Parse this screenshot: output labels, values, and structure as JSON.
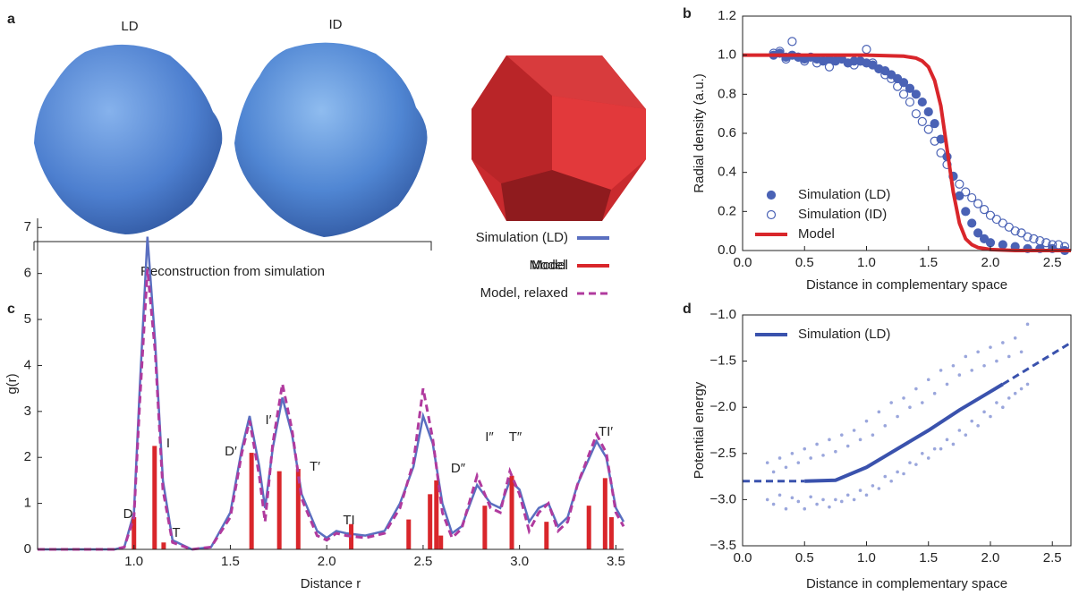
{
  "panel_labels": [
    "a",
    "b",
    "c",
    "d"
  ],
  "panel_a": {
    "labels": [
      "LD",
      "ID"
    ],
    "bracket_label": "Reconstruction from simulation",
    "model_label": "Model"
  },
  "chart_data": [
    {
      "type": "scatter",
      "xlabel": "Distance in complementary space",
      "ylabel": "Radial density (a.u.)",
      "xlim": [
        0,
        2.65
      ],
      "ylim": [
        0,
        1.2
      ],
      "xticks": [
        {
          "value": 0,
          "label": "0.0"
        },
        0.5,
        {
          "value": 1,
          "label": "1.0"
        },
        1.5,
        {
          "value": 2,
          "label": "2.0"
        },
        2.5
      ],
      "yticks": [
        {
          "value": 0,
          "label": "0.0"
        },
        0.2,
        0.4,
        0.6,
        0.8,
        {
          "value": 1,
          "label": "1.0"
        },
        1.2
      ],
      "legend": "lower left",
      "series": [
        {
          "name": "Simulation (LD)",
          "kind": "marker",
          "color": "#4a62b5",
          "x": [
            0.25,
            0.3,
            0.35,
            0.4,
            0.45,
            0.5,
            0.55,
            0.6,
            0.65,
            0.7,
            0.75,
            0.8,
            0.85,
            0.9,
            0.95,
            1.0,
            1.05,
            1.1,
            1.15,
            1.2,
            1.25,
            1.3,
            1.35,
            1.4,
            1.45,
            1.5,
            1.55,
            1.6,
            1.65,
            1.7,
            1.75,
            1.8,
            1.85,
            1.9,
            1.95,
            2.0,
            2.1,
            2.2,
            2.3,
            2.4,
            2.5,
            2.6
          ],
          "values": [
            1.0,
            1.01,
            0.99,
            1.0,
            0.99,
            0.98,
            0.99,
            0.98,
            0.97,
            0.98,
            0.97,
            0.98,
            0.96,
            0.97,
            0.97,
            0.96,
            0.95,
            0.93,
            0.92,
            0.9,
            0.88,
            0.86,
            0.83,
            0.8,
            0.76,
            0.71,
            0.65,
            0.57,
            0.48,
            0.38,
            0.28,
            0.2,
            0.14,
            0.09,
            0.06,
            0.04,
            0.03,
            0.02,
            0.01,
            0.01,
            0.01,
            0.0
          ]
        },
        {
          "name": "Simulation (ID)",
          "kind": "marker",
          "open": true,
          "color": "#4a62b5",
          "x": [
            0.25,
            0.3,
            0.35,
            0.4,
            0.45,
            0.5,
            0.6,
            0.7,
            0.8,
            0.9,
            0.95,
            1.0,
            1.05,
            1.1,
            1.15,
            1.2,
            1.25,
            1.3,
            1.35,
            1.4,
            1.45,
            1.5,
            1.55,
            1.6,
            1.65,
            1.7,
            1.75,
            1.8,
            1.85,
            1.9,
            1.95,
            2.0,
            2.05,
            2.1,
            2.15,
            2.2,
            2.25,
            2.3,
            2.35,
            2.4,
            2.45,
            2.5,
            2.55,
            2.6
          ],
          "values": [
            1.01,
            1.02,
            0.98,
            1.07,
            0.99,
            0.97,
            0.96,
            0.94,
            0.98,
            0.95,
            0.97,
            1.03,
            0.96,
            0.93,
            0.9,
            0.88,
            0.84,
            0.8,
            0.76,
            0.7,
            0.66,
            0.62,
            0.56,
            0.5,
            0.44,
            0.38,
            0.34,
            0.3,
            0.27,
            0.24,
            0.21,
            0.18,
            0.16,
            0.14,
            0.12,
            0.1,
            0.09,
            0.07,
            0.06,
            0.05,
            0.04,
            0.03,
            0.03,
            0.02
          ]
        },
        {
          "name": "Model",
          "kind": "line",
          "color": "#d9262b",
          "x": [
            0,
            0.5,
            1.0,
            1.3,
            1.4,
            1.45,
            1.5,
            1.55,
            1.6,
            1.65,
            1.7,
            1.75,
            1.8,
            1.85,
            1.9,
            2.0,
            2.2,
            2.65
          ],
          "values": [
            1,
            1,
            1,
            0.995,
            0.985,
            0.97,
            0.94,
            0.87,
            0.74,
            0.52,
            0.3,
            0.14,
            0.06,
            0.03,
            0.015,
            0.005,
            0,
            0
          ]
        }
      ]
    },
    {
      "type": "line",
      "xlabel": "Distance r",
      "ylabel": "g(r)",
      "xlim": [
        0.5,
        3.54
      ],
      "ylim": [
        0,
        7.2
      ],
      "xticks": [
        {
          "value": 1,
          "label": "1.0"
        },
        1.5,
        {
          "value": 2,
          "label": "2.0"
        },
        2.5,
        {
          "value": 3,
          "label": "3.0"
        },
        3.5
      ],
      "yticks": [
        0,
        1,
        2,
        3,
        4,
        5,
        6,
        7
      ],
      "legend": "upper right",
      "annotations": [
        "D",
        "I",
        "T",
        "D′",
        "I′",
        "T′",
        "TI",
        "D″",
        "I″",
        "T″",
        "TI′"
      ],
      "series": [
        {
          "name": "Simulation (LD)",
          "kind": "line",
          "color": "#5a6fc0",
          "x": [
            0.5,
            0.9,
            0.95,
            1.0,
            1.03,
            1.07,
            1.11,
            1.15,
            1.2,
            1.3,
            1.4,
            1.5,
            1.56,
            1.6,
            1.65,
            1.68,
            1.72,
            1.77,
            1.82,
            1.87,
            1.95,
            2.0,
            2.05,
            2.1,
            2.2,
            2.3,
            2.38,
            2.45,
            2.5,
            2.55,
            2.6,
            2.65,
            2.7,
            2.78,
            2.85,
            2.9,
            2.95,
            3.0,
            3.05,
            3.1,
            3.15,
            3.2,
            3.25,
            3.3,
            3.4,
            3.45,
            3.5,
            3.54
          ],
          "values": [
            0,
            0,
            0.05,
            0.8,
            3.5,
            6.8,
            4.5,
            1.5,
            0.2,
            0,
            0.05,
            0.8,
            2.2,
            2.9,
            1.8,
            0.9,
            2.2,
            3.3,
            2.5,
            1.2,
            0.4,
            0.25,
            0.4,
            0.35,
            0.3,
            0.4,
            1.0,
            1.8,
            2.9,
            2.3,
            1.0,
            0.35,
            0.5,
            1.4,
            1.0,
            0.9,
            1.5,
            1.3,
            0.6,
            0.9,
            1.0,
            0.5,
            0.7,
            1.4,
            2.35,
            2.0,
            0.9,
            0.6
          ]
        },
        {
          "name": "Model",
          "kind": "bar",
          "color": "#d9262b",
          "x": [
            1.0,
            1.107,
            1.154,
            1.61,
            1.754,
            1.852,
            2.127,
            2.425,
            2.536,
            2.569,
            2.592,
            2.82,
            2.96,
            3.14,
            3.36,
            3.444,
            3.477
          ],
          "values": [
            0.7,
            2.25,
            0.15,
            2.1,
            1.7,
            1.75,
            0.55,
            0.65,
            1.2,
            1.5,
            0.3,
            0.95,
            1.6,
            0.6,
            0.95,
            1.55,
            0.7
          ]
        },
        {
          "name": "Model, relaxed",
          "kind": "line",
          "dash": true,
          "color": "#b03a9e",
          "x": [
            0.5,
            0.9,
            0.95,
            1.0,
            1.03,
            1.07,
            1.11,
            1.15,
            1.2,
            1.3,
            1.4,
            1.5,
            1.56,
            1.6,
            1.65,
            1.68,
            1.72,
            1.77,
            1.82,
            1.87,
            1.95,
            2.0,
            2.05,
            2.1,
            2.2,
            2.3,
            2.38,
            2.45,
            2.5,
            2.55,
            2.6,
            2.65,
            2.7,
            2.78,
            2.85,
            2.9,
            2.95,
            3.0,
            3.05,
            3.1,
            3.15,
            3.2,
            3.25,
            3.3,
            3.4,
            3.45,
            3.5,
            3.54
          ],
          "values": [
            0,
            0,
            0.05,
            0.7,
            3.2,
            6.1,
            4.3,
            1.3,
            0.15,
            0,
            0.05,
            0.7,
            2.1,
            2.8,
            1.6,
            0.6,
            2.3,
            3.6,
            2.6,
            1.1,
            0.3,
            0.2,
            0.35,
            0.3,
            0.25,
            0.35,
            0.9,
            1.9,
            3.5,
            2.4,
            0.8,
            0.25,
            0.45,
            1.6,
            0.9,
            0.8,
            1.7,
            1.2,
            0.4,
            0.8,
            1.0,
            0.4,
            0.6,
            1.4,
            2.5,
            2.1,
            0.8,
            0.5
          ]
        }
      ]
    },
    {
      "type": "scatter",
      "xlabel": "Distance in complementary space",
      "ylabel": "Potential energy",
      "xlim": [
        0,
        2.65
      ],
      "ylim": [
        -3.5,
        -1.0
      ],
      "xticks": [
        {
          "value": 0,
          "label": "0.0"
        },
        0.5,
        {
          "value": 1,
          "label": "1.0"
        },
        1.5,
        {
          "value": 2,
          "label": "2.0"
        },
        2.5
      ],
      "yticks": [
        {
          "value": -3.5,
          "label": "−3.5"
        },
        {
          "value": -3.0,
          "label": "−3.0"
        },
        {
          "value": -2.5,
          "label": "−2.5"
        },
        {
          "value": -2.0,
          "label": "−2.0"
        },
        {
          "value": -1.5,
          "label": "−1.5"
        },
        {
          "value": -1.0,
          "label": "−1.0"
        }
      ],
      "legend": "upper left",
      "series": [
        {
          "kind": "dots",
          "color": "#9aa6dc",
          "x": [
            0.2,
            0.25,
            0.3,
            0.35,
            0.4,
            0.45,
            0.5,
            0.55,
            0.6,
            0.65,
            0.7,
            0.75,
            0.8,
            0.85,
            0.9,
            0.95,
            1.0,
            1.05,
            1.1,
            1.15,
            1.2,
            1.25,
            1.3,
            1.35,
            1.4,
            1.45,
            1.5,
            1.55,
            1.6,
            1.65,
            1.7,
            1.75,
            1.8,
            1.85,
            1.9,
            1.95,
            2.0,
            2.05,
            2.1,
            2.15,
            2.2,
            2.25,
            2.3,
            0.2,
            0.25,
            0.3,
            0.35,
            0.4,
            0.45,
            0.5,
            0.55,
            0.6,
            0.65,
            0.7,
            0.75,
            0.8,
            0.85,
            0.9,
            0.95,
            1.0,
            1.05,
            1.1,
            1.15,
            1.2,
            1.25,
            1.3,
            1.35,
            1.4,
            1.45,
            1.5,
            1.55,
            1.6,
            1.65,
            1.7,
            1.75,
            1.8,
            1.85,
            1.9,
            1.95,
            2.0,
            2.05,
            2.1,
            2.15,
            2.2,
            2.25,
            2.3
          ],
          "values": [
            -2.6,
            -2.7,
            -2.55,
            -2.65,
            -2.5,
            -2.6,
            -2.45,
            -2.55,
            -2.4,
            -2.52,
            -2.35,
            -2.48,
            -2.3,
            -2.42,
            -2.25,
            -2.35,
            -2.15,
            -2.3,
            -2.05,
            -2.2,
            -1.95,
            -2.1,
            -1.9,
            -2.0,
            -1.8,
            -1.95,
            -1.7,
            -1.85,
            -1.6,
            -1.75,
            -1.55,
            -1.65,
            -1.45,
            -1.6,
            -1.4,
            -1.55,
            -1.35,
            -1.5,
            -1.3,
            -1.45,
            -1.25,
            -1.4,
            -1.1,
            -3.0,
            -3.05,
            -2.95,
            -3.1,
            -2.98,
            -3.02,
            -3.1,
            -2.97,
            -3.05,
            -3.0,
            -3.08,
            -3.0,
            -3.02,
            -2.95,
            -3.0,
            -2.9,
            -2.95,
            -2.85,
            -2.88,
            -2.75,
            -2.8,
            -2.7,
            -2.72,
            -2.6,
            -2.62,
            -2.5,
            -2.55,
            -2.45,
            -2.45,
            -2.35,
            -2.4,
            -2.25,
            -2.3,
            -2.15,
            -2.2,
            -2.05,
            -2.1,
            -1.95,
            -2.0,
            -1.9,
            -1.85,
            -1.8,
            -1.75
          ]
        },
        {
          "kind": "line",
          "dash": true,
          "color": "#3a52ad",
          "x": [
            0,
            0.5
          ],
          "values": [
            -2.8,
            -2.8
          ]
        },
        {
          "name": "Simulation (LD)",
          "kind": "line",
          "color": "#3a52ad",
          "x": [
            0.5,
            0.75,
            1.0,
            1.25,
            1.5,
            1.75,
            2.0,
            2.1
          ],
          "values": [
            -2.8,
            -2.79,
            -2.65,
            -2.45,
            -2.25,
            -2.03,
            -1.83,
            -1.75
          ]
        },
        {
          "kind": "line",
          "dash": true,
          "color": "#3a52ad",
          "x": [
            2.1,
            2.65
          ],
          "values": [
            -1.75,
            -1.3
          ]
        }
      ]
    }
  ]
}
